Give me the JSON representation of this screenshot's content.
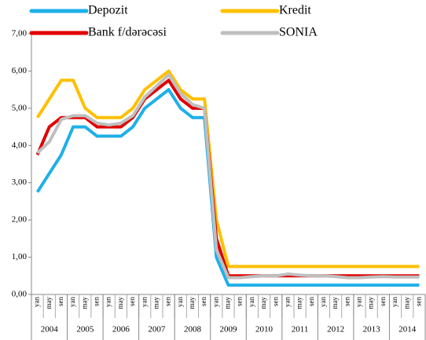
{
  "chart_data": {
    "type": "line",
    "categories": [
      "yan",
      "may",
      "sen",
      "yan",
      "may",
      "sen",
      "yan",
      "may",
      "sen",
      "yan",
      "may",
      "sen",
      "yan",
      "may",
      "sen",
      "yan",
      "may",
      "sen",
      "yan",
      "may",
      "sen",
      "yan",
      "may",
      "sen",
      "yan",
      "may",
      "sen",
      "yan",
      "may",
      "sen",
      "yan",
      "may",
      "sen"
    ],
    "years": [
      "2004",
      "2005",
      "2006",
      "2007",
      "2008",
      "2009",
      "2010",
      "2011",
      "2012",
      "2013",
      "2014"
    ],
    "series": [
      {
        "name": "Depozit",
        "color": "#1fb0e8",
        "values": [
          2.75,
          3.25,
          3.75,
          4.5,
          4.5,
          4.25,
          4.25,
          4.25,
          4.5,
          5.0,
          5.25,
          5.5,
          5.0,
          4.75,
          4.75,
          1.0,
          0.25,
          0.25,
          0.25,
          0.25,
          0.25,
          0.25,
          0.25,
          0.25,
          0.25,
          0.25,
          0.25,
          0.25,
          0.25,
          0.25,
          0.25,
          0.25,
          0.25
        ]
      },
      {
        "name": "Kredit",
        "color": "#ffc000",
        "values": [
          4.75,
          5.25,
          5.75,
          5.75,
          5.0,
          4.75,
          4.75,
          4.75,
          5.0,
          5.5,
          5.75,
          6.0,
          5.5,
          5.25,
          5.25,
          2.0,
          0.75,
          0.75,
          0.75,
          0.75,
          0.75,
          0.75,
          0.75,
          0.75,
          0.75,
          0.75,
          0.75,
          0.75,
          0.75,
          0.75,
          0.75,
          0.75,
          0.75
        ]
      },
      {
        "name": "Bank f/dərəcəsi",
        "color": "#e00000",
        "values": [
          3.75,
          4.5,
          4.75,
          4.75,
          4.75,
          4.5,
          4.5,
          4.5,
          4.75,
          5.25,
          5.5,
          5.75,
          5.25,
          5.0,
          5.0,
          1.5,
          0.5,
          0.5,
          0.5,
          0.5,
          0.5,
          0.5,
          0.5,
          0.5,
          0.5,
          0.5,
          0.5,
          0.5,
          0.5,
          0.5,
          0.5,
          0.5,
          0.5
        ]
      },
      {
        "name": "SONIA",
        "color": "#bfbfbf",
        "values": [
          3.8,
          4.1,
          4.7,
          4.8,
          4.8,
          4.6,
          4.55,
          4.6,
          4.8,
          5.3,
          5.6,
          5.9,
          5.4,
          5.1,
          5.0,
          1.2,
          0.45,
          0.45,
          0.48,
          0.5,
          0.5,
          0.55,
          0.52,
          0.5,
          0.5,
          0.48,
          0.45,
          0.45,
          0.47,
          0.48,
          0.47,
          0.47,
          0.47
        ]
      }
    ],
    "ylim": [
      0,
      7
    ],
    "yticks": [
      {
        "value": 0,
        "label": "0,00"
      },
      {
        "value": 1,
        "label": "1,00"
      },
      {
        "value": 2,
        "label": "2,00"
      },
      {
        "value": 3,
        "label": "3,00"
      },
      {
        "value": 4,
        "label": "4,00"
      },
      {
        "value": 5,
        "label": "5,00"
      },
      {
        "value": 6,
        "label": "6,00"
      },
      {
        "value": 7,
        "label": "7,00"
      }
    ],
    "legend": "top"
  }
}
